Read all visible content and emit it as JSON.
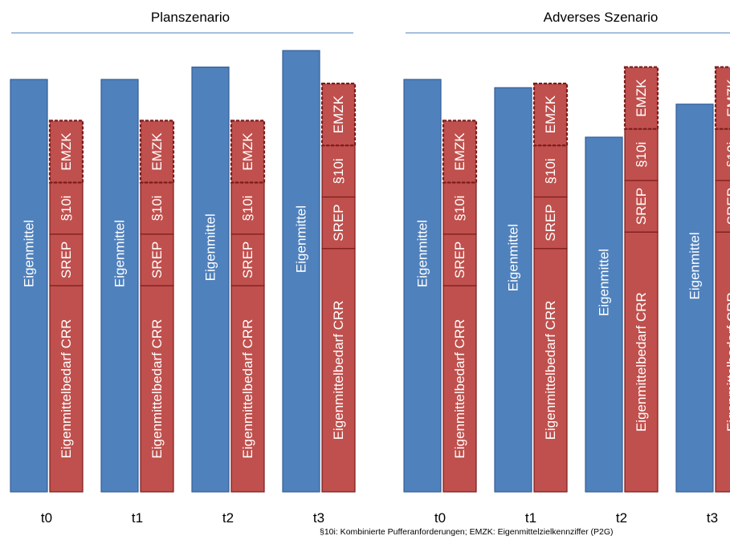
{
  "chart_data": {
    "type": "bar",
    "colors": {
      "eigenmittel_fill": "#4f81bd",
      "eigenmittel_stroke": "#355e96",
      "req_fill": "#c0504d",
      "req_stroke": "#7a1c1c",
      "title_rule": "#4f81bd"
    },
    "panels": [
      {
        "title": "Planszenario",
        "categories": [
          "t0",
          "t1",
          "t2",
          "t3"
        ],
        "eigenmittel": [
          100,
          100,
          103,
          107
        ],
        "segments": [
          {
            "crr": 50,
            "srep": 12.5,
            "p10i": 12.5,
            "emzk": 15
          },
          {
            "crr": 50,
            "srep": 12.5,
            "p10i": 12.5,
            "emzk": 15
          },
          {
            "crr": 50,
            "srep": 12.5,
            "p10i": 12.5,
            "emzk": 15
          },
          {
            "crr": 59,
            "srep": 12.5,
            "p10i": 12.5,
            "emzk": 15
          }
        ]
      },
      {
        "title": "Adverses Szenario",
        "categories": [
          "t0",
          "t1",
          "t2",
          "t3"
        ],
        "eigenmittel": [
          100,
          98,
          86,
          94
        ],
        "segments": [
          {
            "crr": 50,
            "srep": 12.5,
            "p10i": 12.5,
            "emzk": 15
          },
          {
            "crr": 59,
            "srep": 12.5,
            "p10i": 12.5,
            "emzk": 15
          },
          {
            "crr": 63,
            "srep": 12.5,
            "p10i": 12.5,
            "emzk": 15
          },
          {
            "crr": 63,
            "srep": 12.5,
            "p10i": 12.5,
            "emzk": 15
          }
        ]
      }
    ],
    "segment_labels": {
      "eigenmittel": "Eigenmittel",
      "crr": "Eigenmittelbedarf CRR",
      "srep": "SREP",
      "p10i": "§10i",
      "emzk": "EMZK"
    },
    "ylim": [
      0,
      107
    ]
  },
  "footnote": "§10i: Kombinierte Pufferanforderungen; EMZK: Eigenmittelzielkennziffer (P2G)"
}
